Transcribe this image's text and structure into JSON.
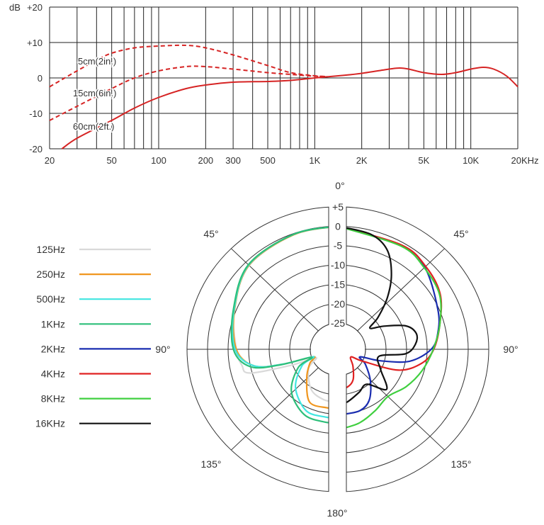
{
  "chart_data": [
    {
      "type": "line",
      "ylabel": "dB",
      "xscale": "log",
      "xlim": [
        20,
        20000
      ],
      "ylim": [
        -20,
        20
      ],
      "grid": true,
      "y_ticks": [
        {
          "v": 20,
          "label": "+20"
        },
        {
          "v": 10,
          "label": "+10"
        },
        {
          "v": 0,
          "label": "0"
        },
        {
          "v": -10,
          "label": "-10"
        },
        {
          "v": -20,
          "label": "-20"
        }
      ],
      "x_ticks": [
        {
          "v": 20,
          "label": "20"
        },
        {
          "v": 50,
          "label": "50"
        },
        {
          "v": 100,
          "label": "100"
        },
        {
          "v": 200,
          "label": "200"
        },
        {
          "v": 300,
          "label": "300"
        },
        {
          "v": 500,
          "label": "500"
        },
        {
          "v": 1000,
          "label": "1K"
        },
        {
          "v": 2000,
          "label": "2K"
        },
        {
          "v": 5000,
          "label": "5K"
        },
        {
          "v": 10000,
          "label": "10K"
        },
        {
          "v": 20000,
          "label": "20KHz"
        }
      ],
      "color": "#d62424",
      "series": [
        {
          "name": "5cm(2in.)",
          "style": "dashed",
          "points": [
            [
              20,
              -2.5
            ],
            [
              25,
              0
            ],
            [
              30,
              2
            ],
            [
              40,
              5
            ],
            [
              50,
              7
            ],
            [
              70,
              8.5
            ],
            [
              100,
              9
            ],
            [
              150,
              9.2
            ],
            [
              200,
              8.5
            ],
            [
              300,
              6.5
            ],
            [
              500,
              3.5
            ],
            [
              700,
              1.5
            ],
            [
              1000,
              0.6
            ],
            [
              1200,
              0.4
            ]
          ]
        },
        {
          "name": "15cm(6in.)",
          "style": "dashed",
          "points": [
            [
              20,
              -12
            ],
            [
              30,
              -8
            ],
            [
              50,
              -3
            ],
            [
              70,
              0
            ],
            [
              100,
              2
            ],
            [
              150,
              3.2
            ],
            [
              200,
              3.2
            ],
            [
              300,
              2.5
            ],
            [
              500,
              1.5
            ],
            [
              700,
              1
            ],
            [
              1000,
              0.5
            ],
            [
              1200,
              0.4
            ]
          ]
        },
        {
          "name": "60cm(2ft.)",
          "style": "solid",
          "points": [
            [
              24,
              -20
            ],
            [
              30,
              -17
            ],
            [
              50,
              -12
            ],
            [
              70,
              -8.5
            ],
            [
              100,
              -5.5
            ],
            [
              150,
              -3
            ],
            [
              200,
              -2
            ],
            [
              300,
              -1.2
            ],
            [
              500,
              -1
            ],
            [
              700,
              -0.7
            ],
            [
              1000,
              0
            ],
            [
              1500,
              0.7
            ],
            [
              2000,
              1.3
            ],
            [
              3000,
              2.5
            ],
            [
              3500,
              2.8
            ],
            [
              4000,
              2.5
            ],
            [
              5000,
              1.5
            ],
            [
              6500,
              1
            ],
            [
              8000,
              1.5
            ],
            [
              10000,
              2.5
            ],
            [
              12000,
              3
            ],
            [
              14000,
              2.5
            ],
            [
              17000,
              0.5
            ],
            [
              20000,
              -2.5
            ]
          ]
        }
      ]
    },
    {
      "type": "polar",
      "rlim": [
        -25,
        5
      ],
      "r_ticks": [
        {
          "v": 5,
          "label": "+5"
        },
        {
          "v": 0,
          "label": "0"
        },
        {
          "v": -5,
          "label": "-5"
        },
        {
          "v": -10,
          "label": "-10"
        },
        {
          "v": -15,
          "label": "-15"
        },
        {
          "v": -20,
          "label": "-20"
        },
        {
          "v": -25,
          "label": "-25"
        }
      ],
      "angle_labels": {
        "top": "0°",
        "left45": "45°",
        "right45": "45°",
        "left90": "90°",
        "right90": "90°",
        "left135": "135°",
        "right135": "135°",
        "bottom": "180°"
      },
      "legend_position": "left",
      "series": [
        {
          "name": "125Hz",
          "color": "#d9d9d9",
          "side": "left",
          "points": [
            [
              0,
              0
            ],
            [
              20,
              -0.3
            ],
            [
              45,
              -1.2
            ],
            [
              68,
              -4.5
            ],
            [
              90,
              -7
            ],
            [
              100,
              -8
            ],
            [
              106,
              -9.5
            ],
            [
              110,
              -20
            ],
            [
              112,
              -26
            ],
            [
              125,
              -23
            ],
            [
              148,
              -19.5
            ],
            [
              165,
              -18.3
            ],
            [
              180,
              -18
            ]
          ]
        },
        {
          "name": "250Hz",
          "color": "#f0961e",
          "side": "left",
          "points": [
            [
              0,
              0
            ],
            [
              20,
              -0.3
            ],
            [
              45,
              -1.1
            ],
            [
              68,
              -4.6
            ],
            [
              90,
              -7
            ],
            [
              102,
              -11
            ],
            [
              106,
              -18
            ],
            [
              108,
              -25.5
            ],
            [
              118,
              -24
            ],
            [
              134,
              -21.2
            ],
            [
              153,
              -16.5
            ],
            [
              170,
              -16.4
            ],
            [
              180,
              -16.4
            ]
          ]
        },
        {
          "name": "500Hz",
          "color": "#40e6e0",
          "side": "left",
          "points": [
            [
              0,
              0
            ],
            [
              20,
              -0.2
            ],
            [
              45,
              -1
            ],
            [
              68,
              -4.5
            ],
            [
              90,
              -6.7
            ],
            [
              102,
              -11
            ],
            [
              106,
              -18
            ],
            [
              108,
              -25.5
            ],
            [
              116,
              -22
            ],
            [
              134,
              -17.4
            ],
            [
              154,
              -14.1
            ],
            [
              170,
              -14
            ],
            [
              180,
              -14
            ]
          ]
        },
        {
          "name": "1KHz",
          "color": "#2dbf7a",
          "side": "left",
          "points": [
            [
              0,
              0
            ],
            [
              20,
              -0.2
            ],
            [
              45,
              -0.9
            ],
            [
              68,
              -4.3
            ],
            [
              90,
              -6.3
            ],
            [
              102,
              -10
            ],
            [
              106,
              -17
            ],
            [
              108,
              -25
            ],
            [
              116,
              -21
            ],
            [
              134,
              -16
            ],
            [
              154,
              -13
            ],
            [
              170,
              -12.7
            ],
            [
              180,
              -12.7
            ]
          ]
        },
        {
          "name": "2KHz",
          "color": "#1a2db0",
          "side": "right",
          "points": [
            [
              0,
              0
            ],
            [
              30,
              -0.8
            ],
            [
              45,
              -1.8
            ],
            [
              67,
              -5.3
            ],
            [
              80,
              -7
            ],
            [
              90,
              -9
            ],
            [
              100,
              -14
            ],
            [
              106,
              -21
            ],
            [
              110,
              -26
            ],
            [
              120,
              -24
            ],
            [
              136,
              -20.3
            ],
            [
              150,
              -16.5
            ],
            [
              162,
              -15
            ],
            [
              180,
              -14.8
            ]
          ]
        },
        {
          "name": "4KHz",
          "color": "#e02222",
          "side": "right",
          "points": [
            [
              0,
              0
            ],
            [
              30,
              -0.7
            ],
            [
              45,
              -1.5
            ],
            [
              60,
              -3
            ],
            [
              75,
              -6
            ],
            [
              90,
              -8.4
            ],
            [
              100,
              -11
            ],
            [
              110,
              -16
            ],
            [
              117,
              -25
            ],
            [
              122,
              -28
            ],
            [
              140,
              -26
            ],
            [
              155,
              -23
            ],
            [
              167,
              -21.7
            ],
            [
              180,
              -21.5
            ]
          ]
        },
        {
          "name": "8KHz",
          "color": "#3fcf3f",
          "side": "right",
          "points": [
            [
              0,
              0
            ],
            [
              30,
              -1
            ],
            [
              45,
              -2
            ],
            [
              60,
              -3.2
            ],
            [
              75,
              -6
            ],
            [
              90,
              -8.5
            ],
            [
              105,
              -10.5
            ],
            [
              120,
              -12.5
            ],
            [
              135,
              -14.5
            ],
            [
              150,
              -13.5
            ],
            [
              165,
              -12
            ],
            [
              180,
              -11
            ]
          ]
        },
        {
          "name": "16KHz",
          "color": "#111111",
          "side": "right",
          "points": [
            [
              0,
              0
            ],
            [
              15,
              -1
            ],
            [
              25,
              -3.4
            ],
            [
              34,
              -8.4
            ],
            [
              42,
              -13.7
            ],
            [
              50,
              -19
            ],
            [
              55,
              -22.2
            ],
            [
              62,
              -19
            ],
            [
              70,
              -14.1
            ],
            [
              78,
              -12.2
            ],
            [
              86,
              -12.8
            ],
            [
              94,
              -15.2
            ],
            [
              100,
              -21.5
            ],
            [
              116,
              -20.2
            ],
            [
              131,
              -16
            ],
            [
              142,
              -20.3
            ],
            [
              155,
              -19.5
            ],
            [
              171,
              -17.9
            ],
            [
              180,
              -17.8
            ]
          ]
        }
      ]
    }
  ]
}
